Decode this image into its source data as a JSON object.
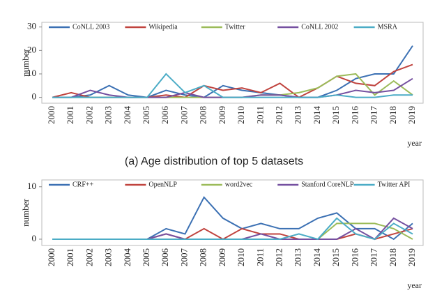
{
  "chart_data": [
    {
      "type": "line",
      "caption": "(a) Age distribution of top 5 datasets",
      "y_label": "number",
      "x_label": "year",
      "categories": [
        "2000",
        "2001",
        "2002",
        "2003",
        "2004",
        "2005",
        "2006",
        "2007",
        "2008",
        "2009",
        "2010",
        "2011",
        "2012",
        "2013",
        "2014",
        "2015",
        "2016",
        "2017",
        "2018",
        "2019"
      ],
      "ylim": [
        -2.5,
        32
      ],
      "yticks": [
        0,
        10,
        20,
        30
      ],
      "series": [
        {
          "name": "CoNLL 2003",
          "color": "#3b70b3",
          "values": [
            0,
            0,
            1,
            5,
            1,
            0,
            3,
            1,
            0,
            5,
            3,
            2,
            1,
            0,
            0,
            3,
            8,
            10,
            10,
            22
          ]
        },
        {
          "name": "Wikipedia",
          "color": "#c0433e",
          "values": [
            0,
            2,
            0,
            0,
            0,
            0,
            1,
            0,
            5,
            3,
            4,
            2,
            6,
            0,
            4,
            9,
            6,
            5,
            11,
            14
          ]
        },
        {
          "name": "Twitter",
          "color": "#9bbb59",
          "values": [
            0,
            0,
            0,
            0,
            0,
            0,
            0,
            0,
            0,
            0,
            0,
            1,
            1,
            2,
            4,
            9,
            10,
            1,
            7,
            1
          ]
        },
        {
          "name": "CoNLL 2002",
          "color": "#7550a0",
          "values": [
            0,
            0,
            3,
            1,
            0,
            0,
            0,
            2,
            0,
            0,
            0,
            1,
            1,
            0,
            0,
            1,
            3,
            2,
            3,
            8
          ]
        },
        {
          "name": "MSRA",
          "color": "#4bacc6",
          "values": [
            0,
            0,
            0,
            0,
            0,
            0,
            10,
            2,
            5,
            0,
            0,
            0,
            0,
            0,
            0,
            1,
            0,
            0,
            1,
            1
          ]
        }
      ]
    },
    {
      "type": "line",
      "y_label": "number",
      "x_label": "year",
      "categories": [
        "2000",
        "2001",
        "2002",
        "2003",
        "2004",
        "2005",
        "2006",
        "2007",
        "2008",
        "2009",
        "2010",
        "2011",
        "2012",
        "2013",
        "2014",
        "2015",
        "2016",
        "2017",
        "2018",
        "2019"
      ],
      "ylim": [
        -1.2,
        11.3
      ],
      "yticks": [
        0,
        10
      ],
      "series": [
        {
          "name": "CRF++",
          "color": "#3b70b3",
          "values": [
            0,
            0,
            0,
            0,
            0,
            0,
            2,
            1,
            8,
            4,
            2,
            3,
            2,
            2,
            4,
            5,
            2,
            2,
            0,
            3
          ]
        },
        {
          "name": "OpenNLP",
          "color": "#c0433e",
          "values": [
            0,
            0,
            0,
            0,
            0,
            0,
            1,
            0,
            2,
            0,
            2,
            1,
            1,
            0,
            0,
            0,
            1,
            0,
            1,
            2
          ]
        },
        {
          "name": "word2vec",
          "color": "#9bbb59",
          "values": [
            0,
            0,
            0,
            0,
            0,
            0,
            0,
            0,
            0,
            0,
            0,
            0,
            0,
            0,
            0,
            3,
            3,
            3,
            2,
            0
          ]
        },
        {
          "name": "Stanford CoreNLP",
          "color": "#7550a0",
          "values": [
            0,
            0,
            0,
            0,
            0,
            0,
            1,
            0,
            0,
            0,
            0,
            1,
            0,
            0,
            0,
            0,
            2,
            0,
            4,
            2
          ]
        },
        {
          "name": "Twitter API",
          "color": "#4bacc6",
          "values": [
            0,
            0,
            0,
            0,
            0,
            0,
            0,
            0,
            0,
            0,
            0,
            0,
            0,
            1,
            0,
            4,
            1,
            0,
            3,
            1
          ]
        }
      ]
    }
  ]
}
